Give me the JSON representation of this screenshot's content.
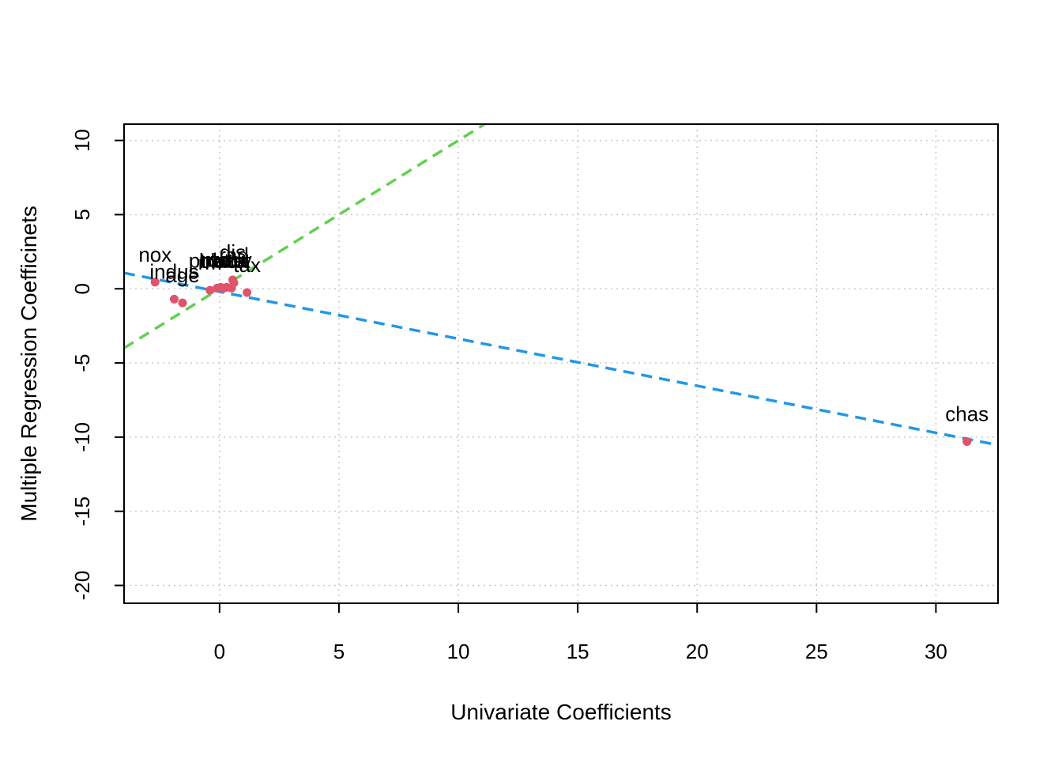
{
  "chart_data": {
    "type": "scatter",
    "title": "",
    "xlabel": "Univariate Coefficients",
    "ylabel": "Multiple Regression Coefficinets",
    "xlim": [
      -4,
      32.6
    ],
    "ylim": [
      -21.2,
      11.1
    ],
    "x_ticks": [
      0,
      5,
      10,
      15,
      20,
      25,
      30
    ],
    "y_ticks": [
      -20,
      -15,
      -10,
      -5,
      0,
      5,
      10
    ],
    "grid": true,
    "point_color": "#DF536B",
    "points": [
      {
        "label": "nox",
        "x": -2.7,
        "y": 0.45
      },
      {
        "label": "indus",
        "x": -1.9,
        "y": -0.7
      },
      {
        "label": "age",
        "x": -1.55,
        "y": -0.95
      },
      {
        "label": "rm",
        "x": -0.4,
        "y": -0.1
      },
      {
        "label": "ptratio",
        "x": -0.1,
        "y": 0.05
      },
      {
        "label": "black",
        "x": 0.15,
        "y": 0.02
      },
      {
        "label": "lstat",
        "x": 0.5,
        "y": 0.05
      },
      {
        "label": "dis",
        "x": 0.55,
        "y": 0.6
      },
      {
        "label": "rad",
        "x": 0.6,
        "y": 0.4
      },
      {
        "label": "tax",
        "x": 1.15,
        "y": -0.25
      },
      {
        "label": "medv",
        "x": 0.3,
        "y": 0.1
      },
      {
        "label": "zn",
        "x": 0.05,
        "y": 0.1
      },
      {
        "label": "chas",
        "x": 31.3,
        "y": -10.3
      }
    ],
    "lines": [
      {
        "kind": "regression",
        "color": "#2297E6",
        "dash": "dashed",
        "intercept": -0.2,
        "slope": -0.317
      },
      {
        "kind": "identity",
        "color": "#61D04F",
        "dash": "dashed",
        "intercept": 0,
        "slope": 1
      }
    ]
  }
}
